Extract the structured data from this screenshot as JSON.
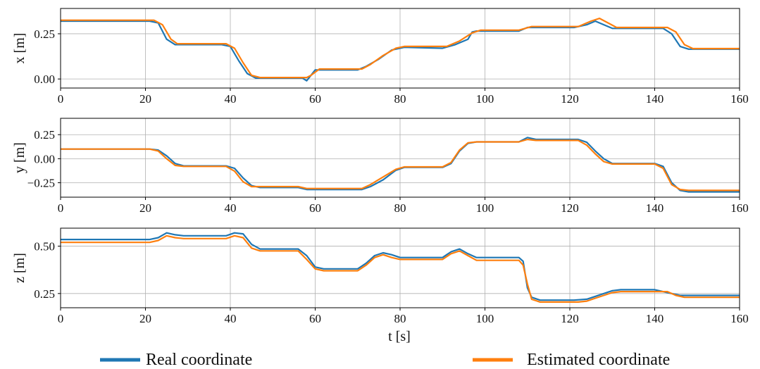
{
  "chart_data": {
    "type": "line",
    "xlabel": "t [s]",
    "xlim": [
      0,
      160
    ],
    "xticks": [
      0,
      20,
      40,
      60,
      80,
      100,
      120,
      140,
      160
    ],
    "grid": true,
    "legend": {
      "placement": "bottom",
      "entries": [
        {
          "label": "Real coordinate",
          "color": "#1f77b4"
        },
        {
          "label": "Estimated coordinate",
          "color": "#ff7f0e"
        }
      ]
    },
    "colors": {
      "real": "#1f77b4",
      "estimated": "#ff7f0e",
      "grid": "#b0b0b0",
      "axes": "#000000"
    },
    "panels": [
      {
        "ylabel": "x [m]",
        "ylim": [
          -0.05,
          0.39
        ],
        "yticks": [
          0.0,
          0.25
        ],
        "ytick_labels": [
          "0.00",
          "0.25"
        ],
        "series": [
          {
            "name": "Real coordinate",
            "points": [
              [
                0,
                0.32
              ],
              [
                21,
                0.32
              ],
              [
                23,
                0.31
              ],
              [
                25,
                0.22
              ],
              [
                27,
                0.19
              ],
              [
                38,
                0.19
              ],
              [
                40,
                0.18
              ],
              [
                42,
                0.1
              ],
              [
                44,
                0.03
              ],
              [
                46,
                0.005
              ],
              [
                57,
                0.005
              ],
              [
                58,
                -0.01
              ],
              [
                60,
                0.05
              ],
              [
                70,
                0.05
              ],
              [
                72,
                0.07
              ],
              [
                75,
                0.11
              ],
              [
                78,
                0.16
              ],
              [
                81,
                0.175
              ],
              [
                90,
                0.17
              ],
              [
                93,
                0.19
              ],
              [
                96,
                0.22
              ],
              [
                97,
                0.26
              ],
              [
                98,
                0.265
              ],
              [
                108,
                0.265
              ],
              [
                110,
                0.285
              ],
              [
                121,
                0.285
              ],
              [
                124,
                0.3
              ],
              [
                126,
                0.32
              ],
              [
                128,
                0.3
              ],
              [
                130,
                0.28
              ],
              [
                142,
                0.28
              ],
              [
                144,
                0.25
              ],
              [
                146,
                0.18
              ],
              [
                148,
                0.165
              ],
              [
                160,
                0.165
              ]
            ]
          },
          {
            "name": "Estimated coordinate",
            "points": [
              [
                0,
                0.325
              ],
              [
                22,
                0.325
              ],
              [
                24,
                0.3
              ],
              [
                26,
                0.22
              ],
              [
                27.5,
                0.195
              ],
              [
                39,
                0.195
              ],
              [
                41,
                0.17
              ],
              [
                43,
                0.09
              ],
              [
                45,
                0.02
              ],
              [
                47,
                0.008
              ],
              [
                58,
                0.008
              ],
              [
                59,
                0.02
              ],
              [
                61,
                0.055
              ],
              [
                71,
                0.055
              ],
              [
                73,
                0.08
              ],
              [
                76,
                0.13
              ],
              [
                79,
                0.17
              ],
              [
                81,
                0.18
              ],
              [
                91,
                0.18
              ],
              [
                94,
                0.21
              ],
              [
                97,
                0.255
              ],
              [
                99,
                0.27
              ],
              [
                108,
                0.27
              ],
              [
                111,
                0.29
              ],
              [
                122,
                0.29
              ],
              [
                125,
                0.32
              ],
              [
                127,
                0.335
              ],
              [
                129,
                0.31
              ],
              [
                131,
                0.285
              ],
              [
                143,
                0.285
              ],
              [
                145,
                0.26
              ],
              [
                147,
                0.19
              ],
              [
                149,
                0.168
              ],
              [
                160,
                0.168
              ]
            ]
          }
        ]
      },
      {
        "ylabel": "y [m]",
        "ylim": [
          -0.4,
          0.42
        ],
        "yticks": [
          0.25,
          0.0,
          -0.25
        ],
        "ytick_labels": [
          "0.25",
          "0.00",
          "−0.25"
        ],
        "series": [
          {
            "name": "Real coordinate",
            "points": [
              [
                0,
                0.1
              ],
              [
                21,
                0.1
              ],
              [
                23,
                0.09
              ],
              [
                25,
                0.03
              ],
              [
                27,
                -0.05
              ],
              [
                29,
                -0.075
              ],
              [
                39,
                -0.075
              ],
              [
                41,
                -0.1
              ],
              [
                43,
                -0.2
              ],
              [
                45,
                -0.28
              ],
              [
                47,
                -0.3
              ],
              [
                56,
                -0.3
              ],
              [
                58,
                -0.32
              ],
              [
                71,
                -0.32
              ],
              [
                73,
                -0.29
              ],
              [
                76,
                -0.22
              ],
              [
                79,
                -0.12
              ],
              [
                81,
                -0.09
              ],
              [
                90,
                -0.09
              ],
              [
                92,
                -0.05
              ],
              [
                94,
                0.08
              ],
              [
                96,
                0.16
              ],
              [
                98,
                0.175
              ],
              [
                108,
                0.175
              ],
              [
                110,
                0.22
              ],
              [
                112,
                0.2
              ],
              [
                122,
                0.2
              ],
              [
                124,
                0.17
              ],
              [
                126,
                0.08
              ],
              [
                128,
                0.0
              ],
              [
                130,
                -0.05
              ],
              [
                140,
                -0.05
              ],
              [
                142,
                -0.08
              ],
              [
                144,
                -0.25
              ],
              [
                146,
                -0.33
              ],
              [
                148,
                -0.345
              ],
              [
                160,
                -0.345
              ]
            ]
          },
          {
            "name": "Estimated coordinate",
            "points": [
              [
                0,
                0.1
              ],
              [
                21,
                0.1
              ],
              [
                23,
                0.08
              ],
              [
                25,
                0.0
              ],
              [
                27,
                -0.07
              ],
              [
                29,
                -0.08
              ],
              [
                39,
                -0.08
              ],
              [
                41,
                -0.13
              ],
              [
                43,
                -0.24
              ],
              [
                45,
                -0.29
              ],
              [
                47,
                -0.29
              ],
              [
                56,
                -0.29
              ],
              [
                58,
                -0.31
              ],
              [
                71,
                -0.31
              ],
              [
                73,
                -0.27
              ],
              [
                76,
                -0.19
              ],
              [
                79,
                -0.11
              ],
              [
                81,
                -0.085
              ],
              [
                90,
                -0.085
              ],
              [
                92,
                -0.04
              ],
              [
                94,
                0.09
              ],
              [
                96,
                0.165
              ],
              [
                98,
                0.175
              ],
              [
                108,
                0.175
              ],
              [
                110,
                0.2
              ],
              [
                112,
                0.19
              ],
              [
                122,
                0.19
              ],
              [
                124,
                0.14
              ],
              [
                126,
                0.05
              ],
              [
                128,
                -0.03
              ],
              [
                130,
                -0.055
              ],
              [
                140,
                -0.055
              ],
              [
                142,
                -0.1
              ],
              [
                144,
                -0.27
              ],
              [
                146,
                -0.32
              ],
              [
                148,
                -0.33
              ],
              [
                160,
                -0.33
              ]
            ]
          }
        ]
      },
      {
        "ylabel": "z [m]",
        "ylim": [
          0.175,
          0.595
        ],
        "yticks": [
          0.5,
          0.25
        ],
        "ytick_labels": [
          "0.50",
          "0.25"
        ],
        "series": [
          {
            "name": "Real coordinate",
            "points": [
              [
                0,
                0.535
              ],
              [
                21,
                0.535
              ],
              [
                23,
                0.545
              ],
              [
                25,
                0.57
              ],
              [
                27,
                0.56
              ],
              [
                29,
                0.555
              ],
              [
                39,
                0.555
              ],
              [
                41,
                0.57
              ],
              [
                43,
                0.565
              ],
              [
                45,
                0.51
              ],
              [
                47,
                0.485
              ],
              [
                56,
                0.485
              ],
              [
                58,
                0.45
              ],
              [
                60,
                0.39
              ],
              [
                62,
                0.38
              ],
              [
                70,
                0.38
              ],
              [
                72,
                0.41
              ],
              [
                74,
                0.45
              ],
              [
                76,
                0.465
              ],
              [
                78,
                0.455
              ],
              [
                80,
                0.44
              ],
              [
                90,
                0.44
              ],
              [
                92,
                0.47
              ],
              [
                94,
                0.485
              ],
              [
                96,
                0.46
              ],
              [
                98,
                0.44
              ],
              [
                108,
                0.44
              ],
              [
                109,
                0.42
              ],
              [
                110,
                0.28
              ],
              [
                111,
                0.23
              ],
              [
                113,
                0.215
              ],
              [
                121,
                0.215
              ],
              [
                124,
                0.22
              ],
              [
                126,
                0.235
              ],
              [
                130,
                0.265
              ],
              [
                132,
                0.27
              ],
              [
                140,
                0.27
              ],
              [
                143,
                0.255
              ],
              [
                146,
                0.24
              ],
              [
                160,
                0.24
              ]
            ]
          },
          {
            "name": "Estimated coordinate",
            "points": [
              [
                0,
                0.52
              ],
              [
                21,
                0.52
              ],
              [
                23,
                0.53
              ],
              [
                25,
                0.555
              ],
              [
                27,
                0.545
              ],
              [
                29,
                0.54
              ],
              [
                39,
                0.54
              ],
              [
                41,
                0.555
              ],
              [
                43,
                0.545
              ],
              [
                45,
                0.49
              ],
              [
                47,
                0.475
              ],
              [
                56,
                0.475
              ],
              [
                58,
                0.43
              ],
              [
                60,
                0.38
              ],
              [
                62,
                0.37
              ],
              [
                70,
                0.37
              ],
              [
                72,
                0.4
              ],
              [
                74,
                0.44
              ],
              [
                76,
                0.455
              ],
              [
                78,
                0.44
              ],
              [
                80,
                0.43
              ],
              [
                90,
                0.43
              ],
              [
                92,
                0.46
              ],
              [
                94,
                0.475
              ],
              [
                96,
                0.45
              ],
              [
                98,
                0.425
              ],
              [
                108,
                0.425
              ],
              [
                109,
                0.4
              ],
              [
                110,
                0.3
              ],
              [
                111,
                0.22
              ],
              [
                113,
                0.205
              ],
              [
                122,
                0.205
              ],
              [
                124,
                0.21
              ],
              [
                126,
                0.225
              ],
              [
                130,
                0.255
              ],
              [
                132,
                0.26
              ],
              [
                143,
                0.26
              ],
              [
                145,
                0.24
              ],
              [
                147,
                0.23
              ],
              [
                160,
                0.23
              ]
            ]
          }
        ]
      }
    ]
  }
}
